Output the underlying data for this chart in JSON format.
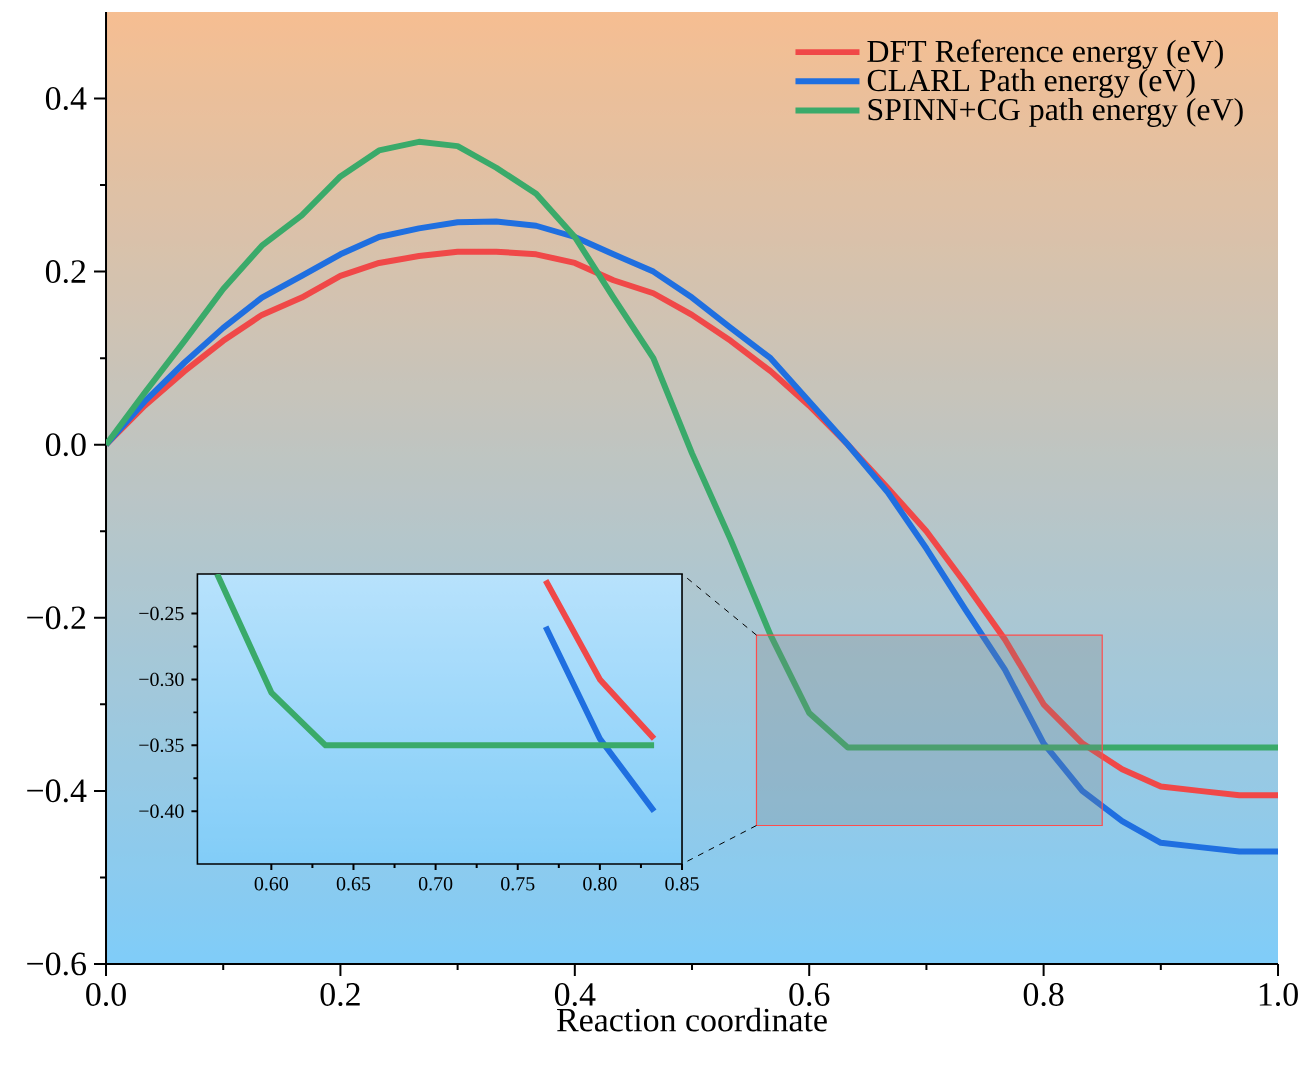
{
  "chart_data": [
    {
      "type": "line",
      "xlabel": "Reaction coordinate",
      "x": [
        0,
        0.033,
        0.067,
        0.1,
        0.133,
        0.167,
        0.2,
        0.233,
        0.267,
        0.3,
        0.333,
        0.367,
        0.4,
        0.433,
        0.467,
        0.5,
        0.533,
        0.567,
        0.6,
        0.633,
        0.667,
        0.7,
        0.733,
        0.767,
        0.8,
        0.833,
        0.867,
        0.9,
        0.933,
        0.967,
        1.0
      ],
      "series": [
        {
          "name": "DFT Reference energy (eV)",
          "color": "#f04848",
          "values": [
            0,
            0.045,
            0.085,
            0.12,
            0.15,
            0.17,
            0.195,
            0.21,
            0.218,
            0.223,
            0.223,
            0.22,
            0.21,
            0.19,
            0.175,
            0.15,
            0.12,
            0.085,
            0.045,
            0.0,
            -0.05,
            -0.1,
            -0.16,
            -0.225,
            -0.3,
            -0.345,
            -0.375,
            -0.395,
            -0.4,
            -0.405,
            -0.405
          ]
        },
        {
          "name": "CLARL Path energy (eV)",
          "color": "#1f6fe0",
          "values": [
            0,
            0.05,
            0.095,
            0.135,
            0.17,
            0.195,
            0.22,
            0.24,
            0.25,
            0.257,
            0.258,
            0.253,
            0.24,
            0.22,
            0.2,
            0.17,
            0.135,
            0.1,
            0.05,
            0.0,
            -0.055,
            -0.12,
            -0.19,
            -0.26,
            -0.345,
            -0.4,
            -0.435,
            -0.46,
            -0.465,
            -0.47,
            -0.47
          ]
        },
        {
          "name": "SPINN+CG path energy (eV)",
          "color": "#3aaa6a",
          "values": [
            0,
            0.06,
            0.12,
            0.18,
            0.23,
            0.265,
            0.31,
            0.34,
            0.35,
            0.345,
            0.32,
            0.29,
            0.24,
            0.17,
            0.1,
            -0.01,
            -0.11,
            -0.22,
            -0.31,
            -0.35,
            -0.35,
            -0.35,
            -0.35,
            -0.35,
            -0.35,
            -0.35,
            -0.35,
            -0.35,
            -0.35,
            -0.35,
            -0.35
          ]
        }
      ],
      "xlim": [
        0,
        1
      ],
      "ylim": [
        -0.6,
        0.5
      ],
      "xticks": [
        {
          "value": 0,
          "label": "0.0"
        },
        0.2,
        0.4,
        0.6,
        0.8,
        {
          "value": 1,
          "label": "1.0"
        }
      ],
      "yticks": [
        {
          "value": -0.6,
          "label": "−0.6"
        },
        {
          "value": -0.4,
          "label": "−0.4"
        },
        {
          "value": -0.2,
          "label": "−0.2"
        },
        {
          "value": 0,
          "label": "0.0"
        },
        0.2,
        0.4
      ],
      "legend": "top right",
      "marker": "none",
      "line_style": "solid",
      "grid": false
    },
    {
      "type": "line",
      "series": [
        {
          "color": "#f04848",
          "x": [
            0.767,
            0.8,
            0.833
          ],
          "values": [
            -0.225,
            -0.3,
            -0.345
          ]
        },
        {
          "color": "#1f6fe0",
          "x": [
            0.767,
            0.8,
            0.833
          ],
          "values": [
            -0.26,
            -0.345,
            -0.4
          ]
        },
        {
          "color": "#3aaa6a",
          "x": [
            0.567,
            0.6,
            0.633,
            0.667,
            0.7,
            0.733,
            0.767,
            0.8,
            0.833
          ],
          "values": [
            -0.22,
            -0.31,
            -0.35,
            -0.35,
            -0.35,
            -0.35,
            -0.35,
            -0.35,
            -0.35
          ]
        }
      ],
      "xlim": [
        0.555,
        0.85
      ],
      "ylim": [
        -0.44,
        -0.22
      ],
      "xticks": [
        {
          "value": 0.6,
          "label": "0.60"
        },
        {
          "value": 0.65,
          "label": "0.65"
        },
        {
          "value": 0.7,
          "label": "0.70"
        },
        {
          "value": 0.75,
          "label": "0.75"
        },
        {
          "value": 0.8,
          "label": "0.80"
        },
        {
          "value": 0.85,
          "label": "0.85"
        }
      ],
      "yticks": [
        {
          "value": -0.25,
          "label": "−0.25"
        },
        {
          "value": -0.3,
          "label": "−0.30"
        },
        {
          "value": -0.35,
          "label": "−0.35"
        },
        {
          "value": -0.4,
          "label": "−0.40"
        }
      ],
      "marker": "none",
      "line_style": "solid",
      "grid": false
    }
  ]
}
